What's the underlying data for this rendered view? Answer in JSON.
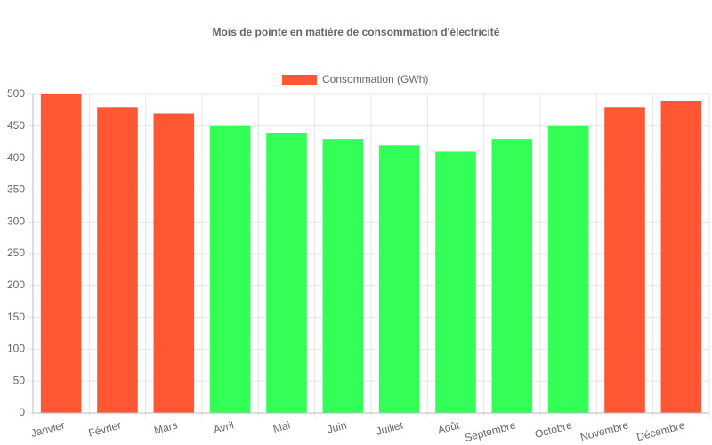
{
  "chart_data": {
    "type": "bar",
    "title": "Mois de pointe en matière de consommation d'électricité",
    "categories": [
      "Janvier",
      "Février",
      "Mars",
      "Avril",
      "Mai",
      "Juin",
      "Juillet",
      "Août",
      "Septembre",
      "Octobre",
      "Novembre",
      "Décembre"
    ],
    "series": [
      {
        "name": "Consommation (GWh)",
        "color": "#FF5733",
        "colors": [
          "#FF5733",
          "#FF5733",
          "#FF5733",
          "#33FF57",
          "#33FF57",
          "#33FF57",
          "#33FF57",
          "#33FF57",
          "#33FF57",
          "#33FF57",
          "#FF5733",
          "#FF5733"
        ],
        "values": [
          500,
          480,
          470,
          450,
          440,
          430,
          420,
          410,
          430,
          450,
          480,
          490
        ]
      }
    ],
    "ylim": [
      0,
      500
    ],
    "yticks": [
      0,
      50,
      100,
      150,
      200,
      250,
      300,
      350,
      400,
      450,
      500
    ],
    "grid": true,
    "legend": "top"
  }
}
